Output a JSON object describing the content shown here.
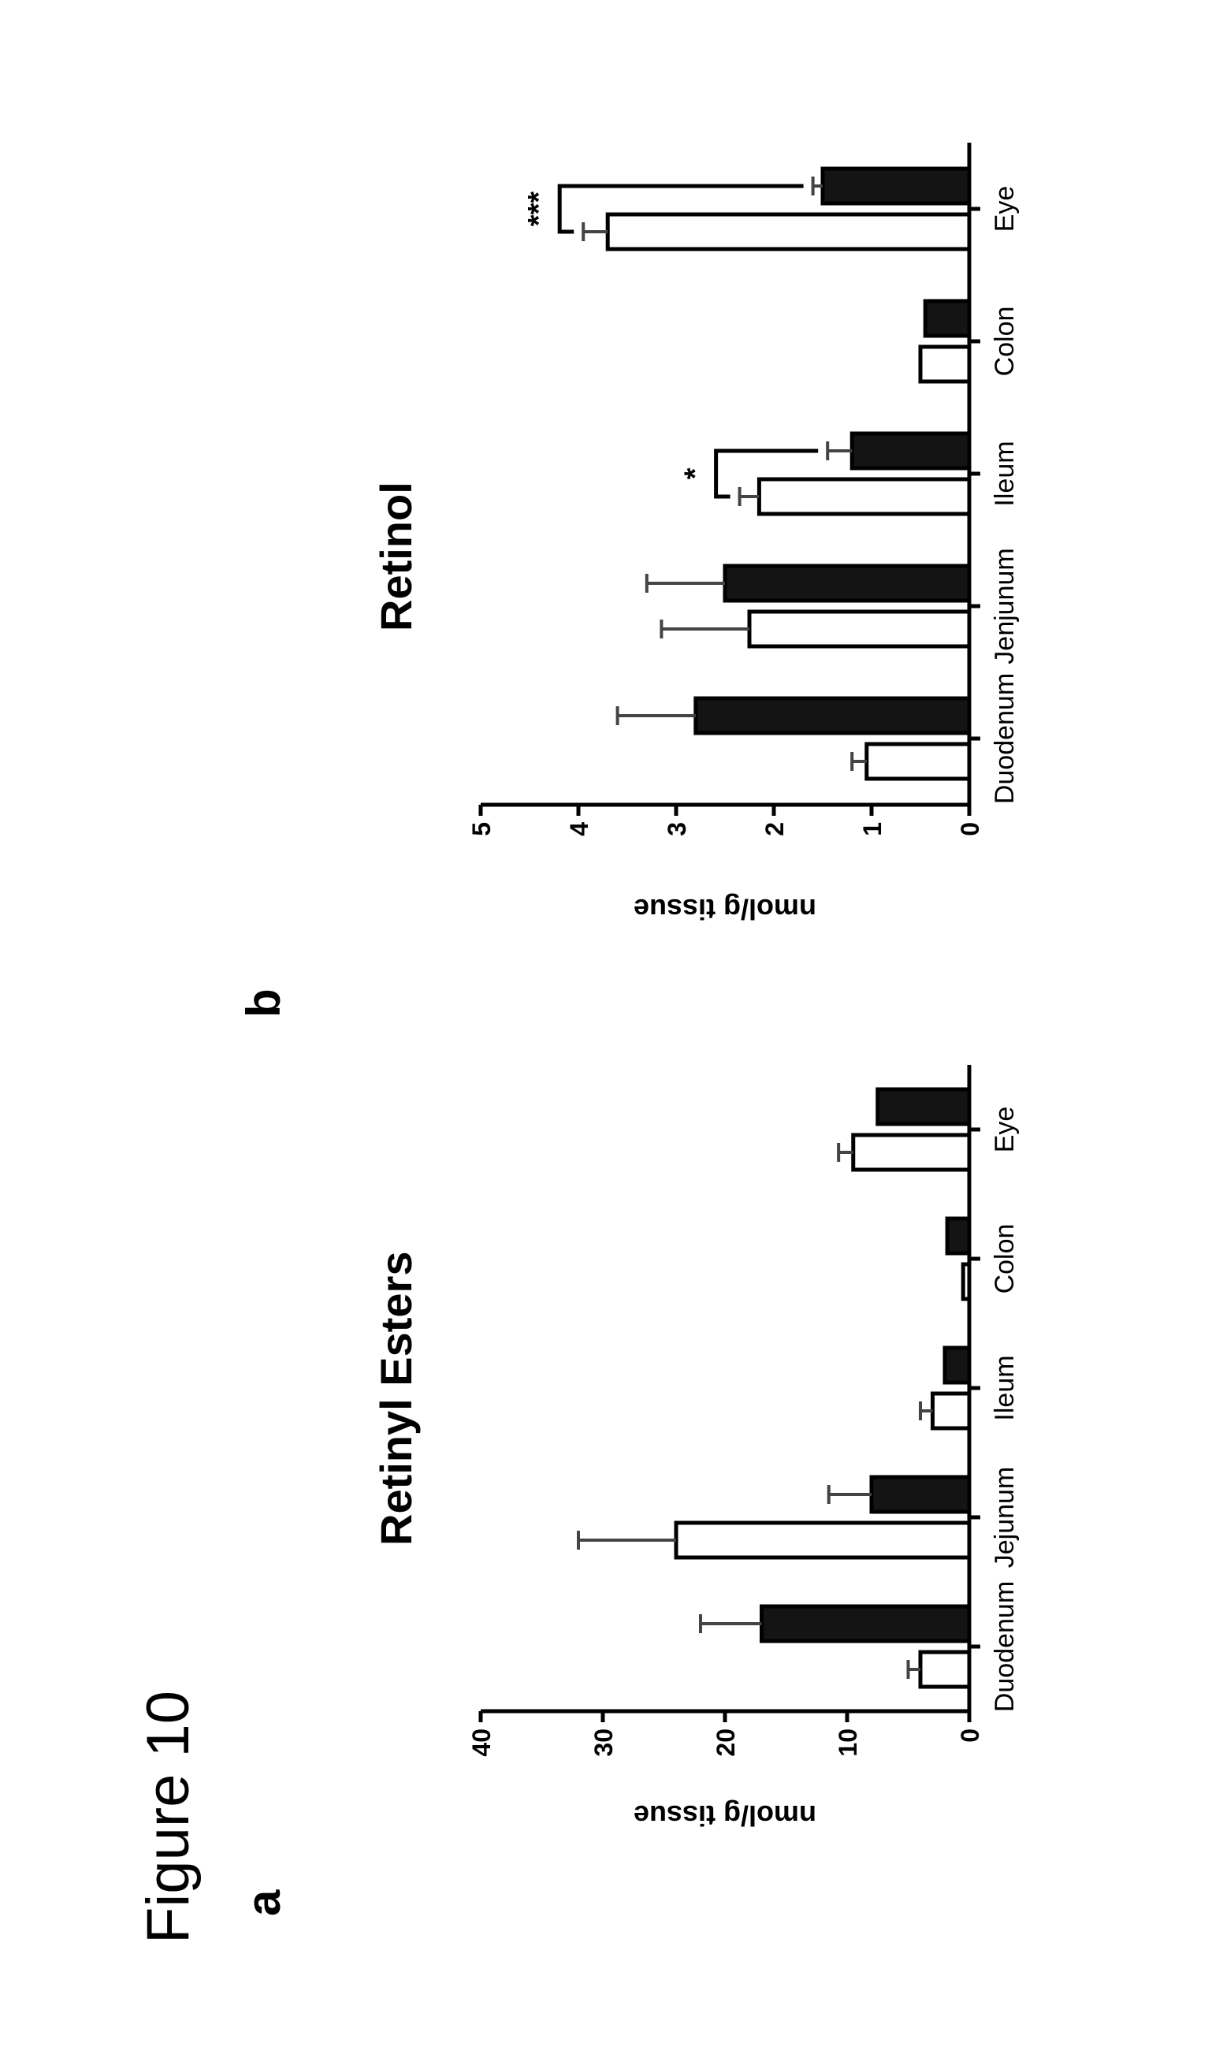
{
  "figure": {
    "title": "Figure 10"
  },
  "panels": [
    {
      "label": "a"
    },
    {
      "label": "b"
    }
  ],
  "colors": {
    "control": "#ffffff",
    "treated": "#141414",
    "ink": "#000000"
  },
  "chart_data": [
    {
      "type": "bar",
      "title": "Retinyl Esters",
      "ylabel": "nmol/g tissue",
      "xlabel": "",
      "ylim": [
        0,
        40
      ],
      "yticks": [
        0,
        10,
        20,
        30,
        40
      ],
      "categories": [
        "Duodenum",
        "Jejunum",
        "Ileum",
        "Colon",
        "Eye"
      ],
      "series": [
        {
          "fill": "white",
          "values": [
            4,
            24,
            3,
            0.5,
            9.5
          ],
          "errors": [
            1,
            8,
            1,
            0,
            1.2
          ]
        },
        {
          "fill": "black",
          "values": [
            17,
            8,
            2,
            1.8,
            7.5
          ],
          "errors": [
            5,
            3.5,
            0,
            0,
            0
          ]
        }
      ],
      "significance": [],
      "grid": false,
      "legend": "none"
    },
    {
      "type": "bar",
      "title": "Retinol",
      "ylabel": "nmol/g tissue",
      "xlabel": "",
      "ylim": [
        0,
        5
      ],
      "yticks": [
        0,
        1,
        2,
        3,
        4,
        5
      ],
      "categories": [
        "Duodenum",
        "Jenjunum",
        "Ileum",
        "Colon",
        "Eye"
      ],
      "series": [
        {
          "fill": "white",
          "values": [
            1.05,
            2.25,
            2.15,
            0.5,
            3.7
          ],
          "errors": [
            0.15,
            0.9,
            0.2,
            0,
            0.25
          ]
        },
        {
          "fill": "black",
          "values": [
            2.8,
            2.5,
            1.2,
            0.45,
            1.5
          ],
          "errors": [
            0.8,
            0.8,
            0.25,
            0,
            0.1
          ]
        }
      ],
      "significance": [
        {
          "category": 2,
          "label": "*"
        },
        {
          "category": 4,
          "label": "***"
        }
      ],
      "grid": false,
      "legend": "none"
    }
  ]
}
